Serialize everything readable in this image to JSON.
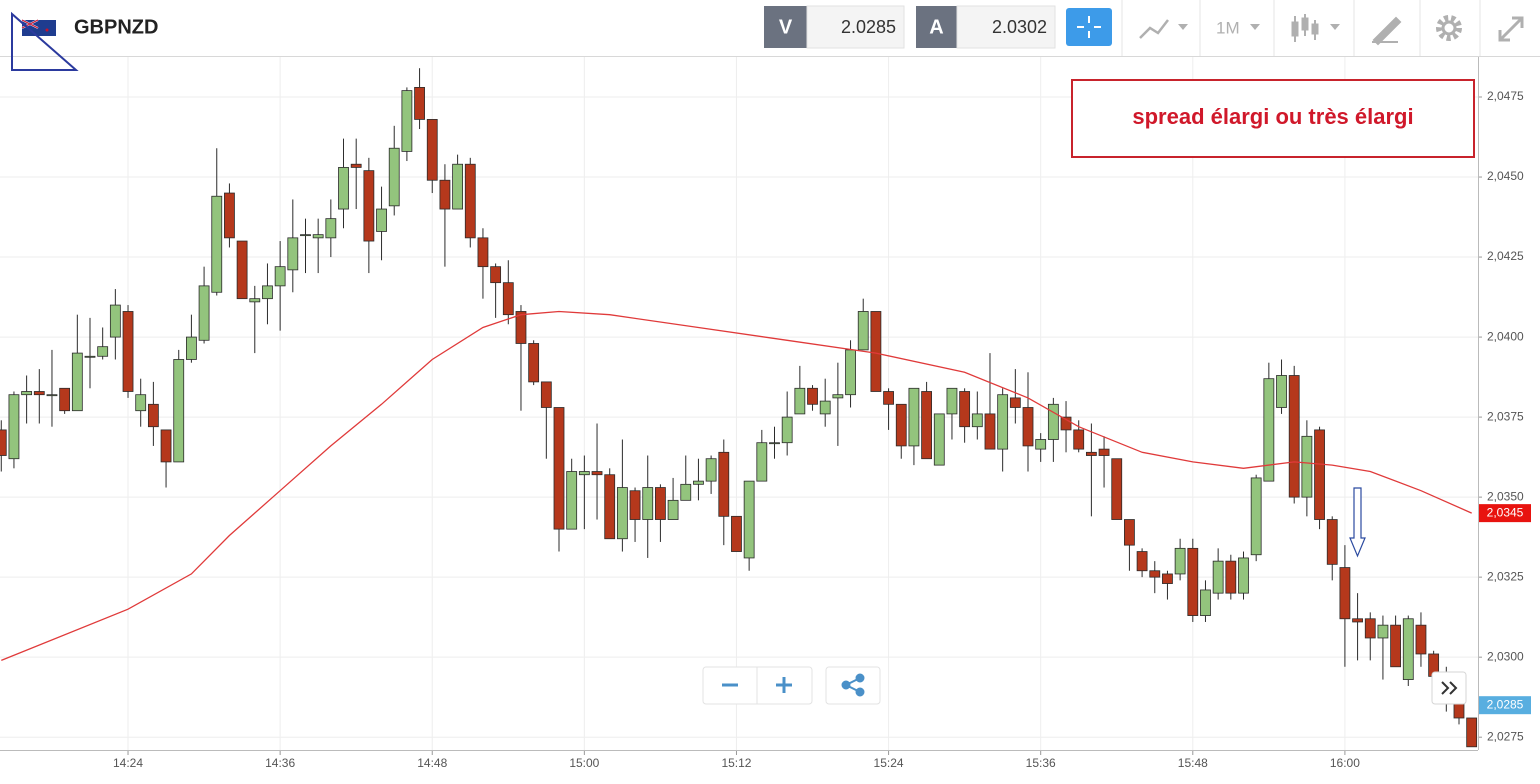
{
  "header": {
    "symbol": "GBPNZD",
    "sell_label": "V",
    "sell_price": "2.0285",
    "buy_label": "A",
    "buy_price": "2.0302",
    "timeframe": "1M"
  },
  "chart_data": {
    "type": "candlestick",
    "annotation": "spread élargi ou très élargi",
    "x": [
      854,
      855,
      856,
      857,
      858,
      859,
      860,
      861,
      862,
      863,
      864,
      865,
      866,
      867,
      868,
      869,
      870,
      871,
      872,
      873,
      874,
      875,
      876,
      877,
      878,
      879,
      880,
      881,
      882,
      883,
      884,
      885,
      886,
      887,
      888,
      889,
      890,
      891,
      892,
      893,
      894,
      895,
      896,
      897,
      898,
      899,
      900,
      901,
      902,
      903,
      904,
      905,
      906,
      907,
      908,
      909,
      910,
      911,
      912,
      913,
      914,
      915,
      916,
      917,
      918,
      919,
      920,
      921,
      922,
      923,
      924,
      925,
      926,
      927,
      928,
      929,
      930,
      931,
      932,
      933,
      934,
      935,
      936,
      937,
      938,
      939,
      940,
      941,
      942,
      943,
      944,
      945,
      946,
      947,
      948,
      949,
      950,
      951,
      952,
      953,
      954,
      955,
      956,
      957,
      958,
      959,
      960,
      961,
      962,
      963,
      964,
      965,
      966,
      967,
      968,
      969,
      970
    ],
    "open": [
      2.0371,
      2.0362,
      2.0382,
      2.0383,
      2.0382,
      2.0384,
      2.0377,
      2.0394,
      2.0394,
      2.04,
      2.0408,
      2.0377,
      2.0379,
      2.0371,
      2.0361,
      2.0393,
      2.0399,
      2.0414,
      2.0445,
      2.043,
      2.0411,
      2.0412,
      2.0416,
      2.0421,
      2.0432,
      2.0431,
      2.0431,
      2.044,
      2.0454,
      2.0452,
      2.0433,
      2.0441,
      2.0458,
      2.0478,
      2.0468,
      2.0449,
      2.044,
      2.0454,
      2.0431,
      2.0422,
      2.0417,
      2.0408,
      2.0398,
      2.0386,
      2.0378,
      2.034,
      2.0357,
      2.0358,
      2.0357,
      2.0337,
      2.0352,
      2.0343,
      2.0353,
      2.0343,
      2.0349,
      2.0354,
      2.0355,
      2.0364,
      2.0344,
      2.0331,
      2.0355,
      2.0367,
      2.0367,
      2.0376,
      2.0384,
      2.0376,
      2.0381,
      2.0382,
      2.0396,
      2.0408,
      2.0383,
      2.0379,
      2.0366,
      2.0383,
      2.036,
      2.0376,
      2.0383,
      2.0372,
      2.0376,
      2.0365,
      2.0381,
      2.0378,
      2.0365,
      2.0368,
      2.0375,
      2.0371,
      2.0364,
      2.0365,
      2.0362,
      2.0343,
      2.0333,
      2.0327,
      2.0326,
      2.0326,
      2.0334,
      2.0313,
      2.032,
      2.033,
      2.032,
      2.0332,
      2.0355,
      2.0378,
      2.0388,
      2.035,
      2.0371,
      2.0343,
      2.0328,
      2.0312,
      2.0312,
      2.0306,
      2.031,
      2.0293,
      2.031,
      2.0301,
      2.029,
      2.0286,
      2.0281
    ],
    "high": [
      2.0374,
      2.0383,
      2.0388,
      2.039,
      2.0396,
      2.0384,
      2.0407,
      2.0406,
      2.0403,
      2.0415,
      2.041,
      2.0387,
      2.0386,
      2.0371,
      2.0396,
      2.0407,
      2.0422,
      2.0459,
      2.0448,
      2.043,
      2.0416,
      2.0423,
      2.043,
      2.0443,
      2.0437,
      2.0437,
      2.0443,
      2.0462,
      2.0462,
      2.0456,
      2.0447,
      2.0466,
      2.0478,
      2.0484,
      2.0468,
      2.0454,
      2.0457,
      2.0456,
      2.0434,
      2.0423,
      2.0424,
      2.041,
      2.0399,
      2.0386,
      2.0378,
      2.0362,
      2.0363,
      2.0373,
      2.0359,
      2.0368,
      2.0353,
      2.0363,
      2.0354,
      2.0356,
      2.0363,
      2.0362,
      2.0363,
      2.0368,
      2.0344,
      2.0355,
      2.0371,
      2.0372,
      2.0383,
      2.0391,
      2.0385,
      2.0387,
      2.0392,
      2.0399,
      2.0412,
      2.0408,
      2.0384,
      2.0379,
      2.0384,
      2.0386,
      2.0376,
      2.0384,
      2.0384,
      2.0383,
      2.0395,
      2.0384,
      2.039,
      2.0389,
      2.037,
      2.0381,
      2.038,
      2.0374,
      2.0373,
      2.0369,
      2.0362,
      2.0343,
      2.0334,
      2.033,
      2.0327,
      2.0337,
      2.0337,
      2.0324,
      2.0334,
      2.0332,
      2.0333,
      2.0357,
      2.0392,
      2.0393,
      2.0391,
      2.0374,
      2.0372,
      2.0344,
      2.0335,
      2.032,
      2.0314,
      2.0313,
      2.0313,
      2.0313,
      2.0314,
      2.0302,
      2.0297,
      2.0288,
      2.0281
    ],
    "low": [
      2.0358,
      2.0359,
      2.0373,
      2.0373,
      2.0372,
      2.0376,
      2.0377,
      2.0384,
      2.0393,
      2.0393,
      2.0381,
      2.0372,
      2.0366,
      2.0353,
      2.0361,
      2.0392,
      2.0398,
      2.0413,
      2.0428,
      2.0412,
      2.0395,
      2.0404,
      2.0402,
      2.0414,
      2.042,
      2.042,
      2.0425,
      2.0434,
      2.044,
      2.042,
      2.0424,
      2.0438,
      2.0455,
      2.0465,
      2.0445,
      2.0422,
      2.044,
      2.0428,
      2.0412,
      2.0406,
      2.0404,
      2.0377,
      2.0385,
      2.0362,
      2.0333,
      2.034,
      2.034,
      2.0343,
      2.0337,
      2.0333,
      2.0336,
      2.0331,
      2.0336,
      2.0343,
      2.0349,
      2.0349,
      2.0351,
      2.0335,
      2.0333,
      2.0327,
      2.0355,
      2.0362,
      2.0363,
      2.0376,
      2.0377,
      2.0372,
      2.0366,
      2.0378,
      2.0396,
      2.0383,
      2.0371,
      2.0362,
      2.036,
      2.0362,
      2.036,
      2.0368,
      2.0367,
      2.0368,
      2.0365,
      2.0358,
      2.0373,
      2.0358,
      2.0361,
      2.0361,
      2.0364,
      2.0364,
      2.0344,
      2.0353,
      2.0343,
      2.0327,
      2.0325,
      2.032,
      2.0318,
      2.0324,
      2.0311,
      2.0311,
      2.0318,
      2.0318,
      2.0318,
      2.033,
      2.0355,
      2.0376,
      2.0348,
      2.0344,
      2.034,
      2.0324,
      2.0297,
      2.0299,
      2.0299,
      2.0293,
      2.0297,
      2.0291,
      2.0297,
      2.0291,
      2.0283,
      2.0279,
      2.0272
    ],
    "close": [
      2.0363,
      2.0382,
      2.0383,
      2.0382,
      2.0382,
      2.0377,
      2.0395,
      2.0394,
      2.0397,
      2.041,
      2.0383,
      2.0382,
      2.0372,
      2.0361,
      2.0393,
      2.04,
      2.0416,
      2.0444,
      2.0431,
      2.0412,
      2.0412,
      2.0416,
      2.0422,
      2.0431,
      2.0432,
      2.0432,
      2.0437,
      2.0453,
      2.0453,
      2.043,
      2.044,
      2.0459,
      2.0477,
      2.0468,
      2.0449,
      2.044,
      2.0454,
      2.0431,
      2.0422,
      2.0417,
      2.0407,
      2.0398,
      2.0386,
      2.0378,
      2.034,
      2.0358,
      2.0358,
      2.0357,
      2.0337,
      2.0353,
      2.0343,
      2.0353,
      2.0343,
      2.0349,
      2.0354,
      2.0355,
      2.0362,
      2.0344,
      2.0333,
      2.0355,
      2.0367,
      2.0367,
      2.0375,
      2.0384,
      2.0379,
      2.038,
      2.0382,
      2.0396,
      2.0408,
      2.0383,
      2.0379,
      2.0366,
      2.0384,
      2.0362,
      2.0376,
      2.0384,
      2.0372,
      2.0376,
      2.0365,
      2.0382,
      2.0378,
      2.0366,
      2.0368,
      2.0379,
      2.0371,
      2.0365,
      2.0363,
      2.0363,
      2.0343,
      2.0335,
      2.0327,
      2.0325,
      2.0323,
      2.0334,
      2.0313,
      2.0321,
      2.033,
      2.032,
      2.0331,
      2.0356,
      2.0387,
      2.0388,
      2.035,
      2.0369,
      2.0343,
      2.0329,
      2.0312,
      2.0311,
      2.0306,
      2.031,
      2.0297,
      2.0312,
      2.0301,
      2.0294,
      2.0286,
      2.0281,
      2.0272
    ],
    "up_color": "#93c47d",
    "down_color": "#b5381c",
    "moving_average": {
      "color": "#e03a3a",
      "x": [
        854,
        864,
        869,
        872,
        876,
        880,
        884,
        888,
        892,
        895,
        898,
        902,
        909,
        916,
        923,
        930,
        935,
        939,
        944,
        948,
        952,
        956,
        959,
        962,
        966,
        970
      ],
      "values": [
        2.0299,
        2.0315,
        2.0326,
        2.0338,
        2.0352,
        2.0366,
        2.0379,
        2.0393,
        2.0403,
        2.0407,
        2.0408,
        2.0407,
        2.0403,
        2.0399,
        2.0395,
        2.0389,
        2.0381,
        2.0372,
        2.0364,
        2.0361,
        2.0359,
        2.0361,
        2.036,
        2.0358,
        2.0352,
        2.0345
      ]
    },
    "price_tags": [
      {
        "value": 2.0345,
        "label": "2,0345",
        "color": "#e8130f"
      },
      {
        "value": 2.0285,
        "label": "2,0285",
        "color": "#58aee0"
      }
    ],
    "xlim": [
      853.9,
      970.5
    ],
    "xticks": [
      {
        "value": 864,
        "label": "14:24"
      },
      {
        "value": 876,
        "label": "14:36"
      },
      {
        "value": 888,
        "label": "14:48"
      },
      {
        "value": 900,
        "label": "15:00"
      },
      {
        "value": 912,
        "label": "15:12"
      },
      {
        "value": 924,
        "label": "15:24"
      },
      {
        "value": 936,
        "label": "15:36"
      },
      {
        "value": 948,
        "label": "15:48"
      },
      {
        "value": 960,
        "label": "16:00"
      }
    ],
    "ylim": [
      2.0271,
      2.04875
    ],
    "yticks": [
      {
        "value": 2.0275,
        "label": "2,0275"
      },
      {
        "value": 2.03,
        "label": "2,0300"
      },
      {
        "value": 2.0325,
        "label": "2,0325"
      },
      {
        "value": 2.035,
        "label": "2,0350"
      },
      {
        "value": 2.0375,
        "label": "2,0375"
      },
      {
        "value": 2.04,
        "label": "2,0400"
      },
      {
        "value": 2.0425,
        "label": "2,0425"
      },
      {
        "value": 2.045,
        "label": "2,0450"
      },
      {
        "value": 2.0475,
        "label": "2,0475"
      }
    ],
    "grid": true
  }
}
